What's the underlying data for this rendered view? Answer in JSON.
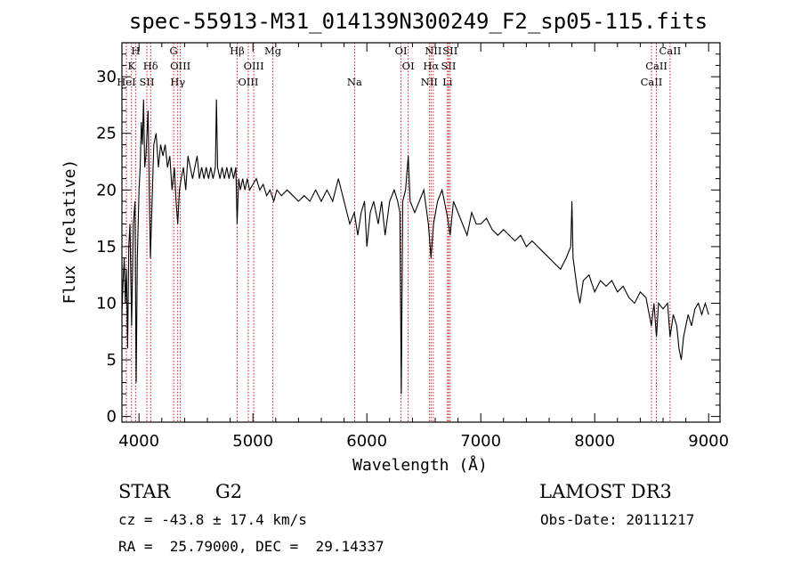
{
  "title": "spec-55913-M31_014139N300249_F2_sp05-115.fits",
  "info": {
    "class": "STAR",
    "subclass": "G2",
    "survey": "LAMOST DR3",
    "cz": "cz = -43.8 ± 17.4 km/s",
    "obs_date": "Obs-Date: 20111217",
    "radec": "RA =  25.79000, DEC =  29.14337"
  },
  "colors": {
    "spectrum": "#000000",
    "lines": "#c80000",
    "axes": "#000000"
  },
  "chart_data": {
    "type": "line",
    "title": "spec-55913-M31_014139N300249_F2_sp05-115.fits",
    "xlabel": "Wavelength (Å)",
    "ylabel": "Flux (relative)",
    "xlim": [
      3850,
      9100
    ],
    "ylim": [
      -0.5,
      33
    ],
    "xticks": [
      4000,
      5000,
      6000,
      7000,
      8000,
      9000
    ],
    "yticks": [
      0,
      5,
      10,
      15,
      20,
      25,
      30
    ],
    "grid": false,
    "series": [
      {
        "name": "flux",
        "points": [
          [
            3850,
            9
          ],
          [
            3860,
            12
          ],
          [
            3870,
            14
          ],
          [
            3880,
            10
          ],
          [
            3890,
            13
          ],
          [
            3900,
            6
          ],
          [
            3910,
            15
          ],
          [
            3920,
            17
          ],
          [
            3935,
            8
          ],
          [
            3950,
            17
          ],
          [
            3965,
            19
          ],
          [
            3975,
            3
          ],
          [
            3985,
            14
          ],
          [
            4000,
            20
          ],
          [
            4010,
            22
          ],
          [
            4020,
            26
          ],
          [
            4030,
            24
          ],
          [
            4040,
            28
          ],
          [
            4050,
            22
          ],
          [
            4060,
            23
          ],
          [
            4070,
            25
          ],
          [
            4080,
            27
          ],
          [
            4090,
            20
          ],
          [
            4100,
            14
          ],
          [
            4115,
            19
          ],
          [
            4130,
            24
          ],
          [
            4150,
            25
          ],
          [
            4170,
            22
          ],
          [
            4190,
            24
          ],
          [
            4210,
            23
          ],
          [
            4230,
            24
          ],
          [
            4250,
            22
          ],
          [
            4270,
            23
          ],
          [
            4290,
            20
          ],
          [
            4310,
            22
          ],
          [
            4325,
            19
          ],
          [
            4340,
            17
          ],
          [
            4355,
            20
          ],
          [
            4370,
            21
          ],
          [
            4390,
            22
          ],
          [
            4410,
            20
          ],
          [
            4430,
            23
          ],
          [
            4450,
            22
          ],
          [
            4470,
            21
          ],
          [
            4490,
            22
          ],
          [
            4510,
            23
          ],
          [
            4530,
            21
          ],
          [
            4550,
            22
          ],
          [
            4570,
            21
          ],
          [
            4590,
            22
          ],
          [
            4610,
            21
          ],
          [
            4630,
            22
          ],
          [
            4650,
            21
          ],
          [
            4670,
            22
          ],
          [
            4680,
            28
          ],
          [
            4690,
            22
          ],
          [
            4710,
            21
          ],
          [
            4730,
            22
          ],
          [
            4750,
            21
          ],
          [
            4770,
            22
          ],
          [
            4790,
            21
          ],
          [
            4810,
            22
          ],
          [
            4830,
            21
          ],
          [
            4850,
            22
          ],
          [
            4861,
            17
          ],
          [
            4875,
            21
          ],
          [
            4890,
            20
          ],
          [
            4910,
            21
          ],
          [
            4930,
            20
          ],
          [
            4950,
            21
          ],
          [
            4970,
            20
          ],
          [
            5000,
            20.5
          ],
          [
            5030,
            21
          ],
          [
            5060,
            20
          ],
          [
            5090,
            20.5
          ],
          [
            5120,
            19.5
          ],
          [
            5150,
            20
          ],
          [
            5183,
            19
          ],
          [
            5210,
            20
          ],
          [
            5250,
            19.5
          ],
          [
            5300,
            20
          ],
          [
            5350,
            19.5
          ],
          [
            5400,
            19
          ],
          [
            5450,
            19.5
          ],
          [
            5500,
            19
          ],
          [
            5550,
            20
          ],
          [
            5600,
            19
          ],
          [
            5650,
            20
          ],
          [
            5700,
            19
          ],
          [
            5750,
            21
          ],
          [
            5800,
            19
          ],
          [
            5850,
            17
          ],
          [
            5890,
            18
          ],
          [
            5920,
            16
          ],
          [
            5950,
            18
          ],
          [
            5980,
            19
          ],
          [
            6000,
            15
          ],
          [
            6030,
            18
          ],
          [
            6060,
            19
          ],
          [
            6100,
            17
          ],
          [
            6130,
            19
          ],
          [
            6160,
            16
          ],
          [
            6200,
            19
          ],
          [
            6240,
            20
          ],
          [
            6270,
            19
          ],
          [
            6290,
            18
          ],
          [
            6302,
            2
          ],
          [
            6315,
            19
          ],
          [
            6340,
            20
          ],
          [
            6363,
            23
          ],
          [
            6380,
            19
          ],
          [
            6420,
            18
          ],
          [
            6460,
            19
          ],
          [
            6500,
            20
          ],
          [
            6540,
            17
          ],
          [
            6563,
            14
          ],
          [
            6585,
            17
          ],
          [
            6620,
            19
          ],
          [
            6660,
            20
          ],
          [
            6700,
            18
          ],
          [
            6717,
            17
          ],
          [
            6731,
            16
          ],
          [
            6760,
            19
          ],
          [
            6800,
            18
          ],
          [
            6840,
            17
          ],
          [
            6880,
            16
          ],
          [
            6920,
            18
          ],
          [
            6960,
            17
          ],
          [
            7000,
            17
          ],
          [
            7050,
            17.5
          ],
          [
            7100,
            16.5
          ],
          [
            7150,
            16
          ],
          [
            7200,
            16.5
          ],
          [
            7250,
            16
          ],
          [
            7300,
            15.5
          ],
          [
            7350,
            16
          ],
          [
            7400,
            15
          ],
          [
            7450,
            15.5
          ],
          [
            7500,
            15
          ],
          [
            7550,
            14.5
          ],
          [
            7600,
            14
          ],
          [
            7650,
            13.5
          ],
          [
            7700,
            13
          ],
          [
            7750,
            14
          ],
          [
            7790,
            15
          ],
          [
            7800,
            19
          ],
          [
            7810,
            14
          ],
          [
            7850,
            11
          ],
          [
            7870,
            10
          ],
          [
            7900,
            12
          ],
          [
            7950,
            12.5
          ],
          [
            8000,
            11
          ],
          [
            8050,
            12
          ],
          [
            8100,
            11.5
          ],
          [
            8150,
            12
          ],
          [
            8200,
            11
          ],
          [
            8250,
            11.5
          ],
          [
            8300,
            10.5
          ],
          [
            8350,
            10
          ],
          [
            8400,
            11
          ],
          [
            8450,
            10.5
          ],
          [
            8498,
            8
          ],
          [
            8520,
            10
          ],
          [
            8542,
            7
          ],
          [
            8560,
            10
          ],
          [
            8600,
            9.5
          ],
          [
            8640,
            10
          ],
          [
            8662,
            7
          ],
          [
            8690,
            9
          ],
          [
            8720,
            8
          ],
          [
            8740,
            6
          ],
          [
            8760,
            5
          ],
          [
            8780,
            7
          ],
          [
            8800,
            8
          ],
          [
            8820,
            9
          ],
          [
            8850,
            8
          ],
          [
            8880,
            9.5
          ],
          [
            8910,
            10
          ],
          [
            8940,
            9
          ],
          [
            8970,
            10
          ],
          [
            9000,
            9
          ]
        ]
      }
    ],
    "lines": [
      {
        "wavelength": 3889,
        "label": "HeI",
        "row": 3
      },
      {
        "wavelength": 3934,
        "label": "K",
        "row": 2
      },
      {
        "wavelength": 3970,
        "label": "H",
        "row": 1
      },
      {
        "wavelength": 4069,
        "label": "SII",
        "row": 3
      },
      {
        "wavelength": 4102,
        "label": "Hδ",
        "row": 2
      },
      {
        "wavelength": 4304,
        "label": "G",
        "row": 1
      },
      {
        "wavelength": 4340,
        "label": "Hγ",
        "row": 3
      },
      {
        "wavelength": 4363,
        "label": "OIII",
        "row": 2
      },
      {
        "wavelength": 4861,
        "label": "Hβ",
        "row": 1
      },
      {
        "wavelength": 4959,
        "label": "OIII",
        "row": 3
      },
      {
        "wavelength": 5007,
        "label": "OIII",
        "row": 2
      },
      {
        "wavelength": 5175,
        "label": "Mg",
        "row": 1
      },
      {
        "wavelength": 5892,
        "label": "Na",
        "row": 3
      },
      {
        "wavelength": 6300,
        "label": "OI",
        "row": 1
      },
      {
        "wavelength": 6363,
        "label": "OI",
        "row": 2
      },
      {
        "wavelength": 6548,
        "label": "NII",
        "row": 3
      },
      {
        "wavelength": 6563,
        "label": "Hα",
        "row": 2
      },
      {
        "wavelength": 6583,
        "label": "NII",
        "row": 1
      },
      {
        "wavelength": 6708,
        "label": "Li",
        "row": 3
      },
      {
        "wavelength": 6717,
        "label": "SII",
        "row": 2
      },
      {
        "wavelength": 6731,
        "label": "SII",
        "row": 1
      },
      {
        "wavelength": 8498,
        "label": "CaII",
        "row": 3
      },
      {
        "wavelength": 8542,
        "label": "CaII",
        "row": 2
      },
      {
        "wavelength": 8662,
        "label": "CaII",
        "row": 1
      }
    ]
  }
}
